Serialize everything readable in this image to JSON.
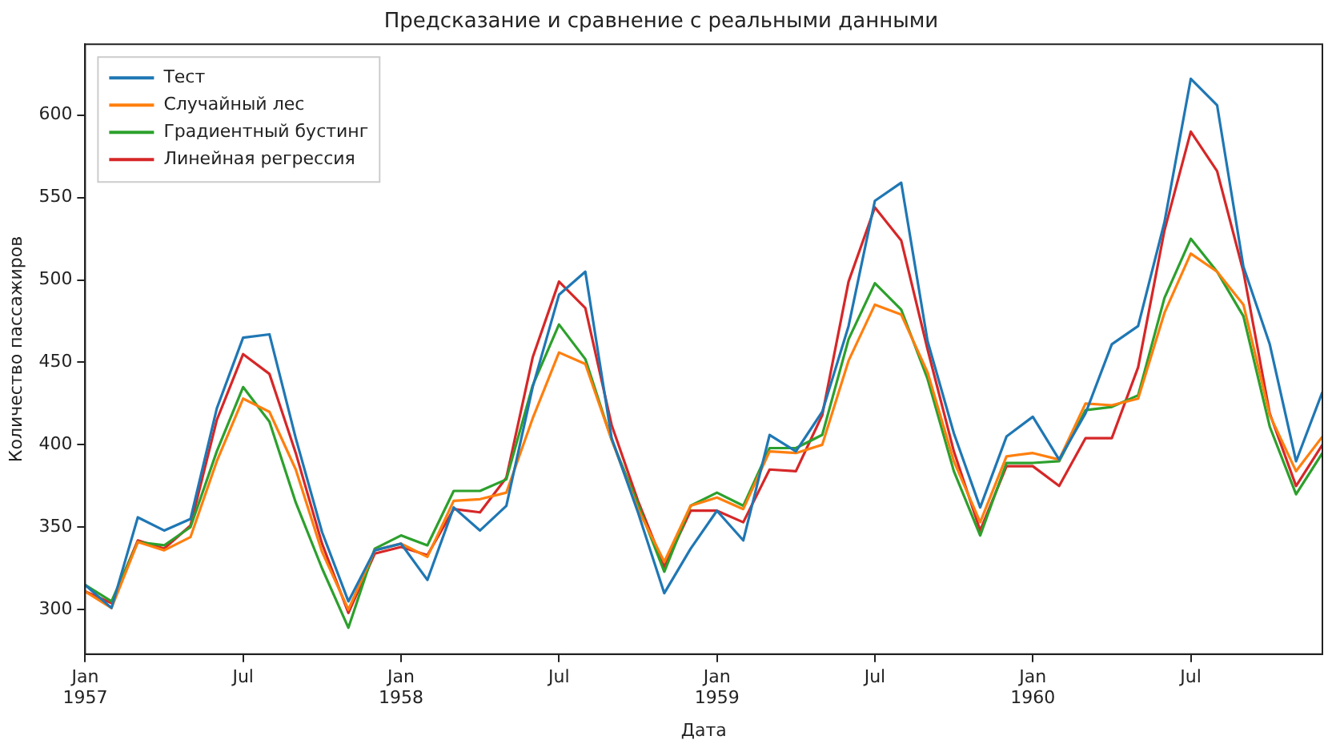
{
  "chart_data": {
    "type": "line",
    "title": "Предсказание и сравнение с реальными данными",
    "xlabel": "Дата",
    "ylabel": "Количество пассажиров",
    "x": [
      "1957-01",
      "1957-02",
      "1957-03",
      "1957-04",
      "1957-05",
      "1957-06",
      "1957-07",
      "1957-08",
      "1957-09",
      "1957-10",
      "1957-11",
      "1957-12",
      "1958-01",
      "1958-02",
      "1958-03",
      "1958-04",
      "1958-05",
      "1958-06",
      "1958-07",
      "1958-08",
      "1958-09",
      "1958-10",
      "1958-11",
      "1958-12",
      "1959-01",
      "1959-02",
      "1959-03",
      "1959-04",
      "1959-05",
      "1959-06",
      "1959-07",
      "1959-08",
      "1959-09",
      "1959-10",
      "1959-11",
      "1959-12",
      "1960-01",
      "1960-02",
      "1960-03",
      "1960-04",
      "1960-05",
      "1960-06",
      "1960-07",
      "1960-08",
      "1960-09",
      "1960-10",
      "1960-11",
      "1960-12"
    ],
    "series": [
      {
        "name": "Тест",
        "color": "#1f77b4",
        "values": [
          315,
          301,
          356,
          348,
          355,
          422,
          465,
          467,
          404,
          347,
          305,
          336,
          340,
          318,
          362,
          348,
          363,
          435,
          491,
          505,
          404,
          359,
          310,
          337,
          360,
          342,
          406,
          396,
          420,
          472,
          548,
          559,
          463,
          407,
          362,
          405,
          417,
          391,
          419,
          461,
          472,
          535,
          622,
          606,
          508,
          461,
          390,
          432
        ]
      },
      {
        "name": "Случайный лес",
        "color": "#ff7f0e",
        "values": [
          311,
          301,
          341,
          336,
          344,
          390,
          428,
          420,
          385,
          335,
          300,
          336,
          340,
          332,
          366,
          367,
          371,
          416,
          456,
          449,
          403,
          361,
          329,
          363,
          368,
          361,
          396,
          395,
          400,
          451,
          485,
          479,
          444,
          390,
          353,
          393,
          395,
          391,
          425,
          424,
          428,
          480,
          516,
          505,
          485,
          418,
          384,
          405
        ]
      },
      {
        "name": "Градиентный бустинг",
        "color": "#2ca02c",
        "values": [
          315,
          305,
          341,
          339,
          350,
          396,
          435,
          414,
          365,
          325,
          289,
          337,
          345,
          339,
          372,
          372,
          379,
          436,
          473,
          452,
          403,
          364,
          323,
          363,
          371,
          363,
          398,
          398,
          406,
          464,
          498,
          482,
          440,
          384,
          345,
          389,
          389,
          390,
          421,
          423,
          430,
          489,
          525,
          505,
          478,
          411,
          370,
          395
        ]
      },
      {
        "name": "Линейная регрессия",
        "color": "#d62728",
        "values": [
          311,
          304,
          342,
          337,
          351,
          415,
          455,
          443,
          395,
          340,
          298,
          334,
          338,
          333,
          361,
          359,
          380,
          453,
          499,
          483,
          412,
          366,
          326,
          360,
          360,
          353,
          385,
          384,
          418,
          499,
          544,
          524,
          458,
          396,
          348,
          387,
          387,
          375,
          404,
          404,
          447,
          530,
          590,
          566,
          505,
          419,
          375,
          400
        ]
      }
    ],
    "xlim": [
      "1957-01",
      "1960-12"
    ],
    "xticks": [
      {
        "value": "1957-01",
        "label": "Jan\n1957"
      },
      {
        "value": "1957-07",
        "label": "Jul"
      },
      {
        "value": "1958-01",
        "label": "Jan\n1958"
      },
      {
        "value": "1958-07",
        "label": "Jul"
      },
      {
        "value": "1959-01",
        "label": "Jan\n1959"
      },
      {
        "value": "1959-07",
        "label": "Jul"
      },
      {
        "value": "1960-01",
        "label": "Jan\n1960"
      },
      {
        "value": "1960-07",
        "label": "Jul"
      }
    ],
    "ylim": [
      273,
      643
    ],
    "yticks": [
      300,
      350,
      400,
      450,
      500,
      550,
      600
    ],
    "grid": false,
    "legend": "top left",
    "marker": "none",
    "line_style": "solid"
  }
}
